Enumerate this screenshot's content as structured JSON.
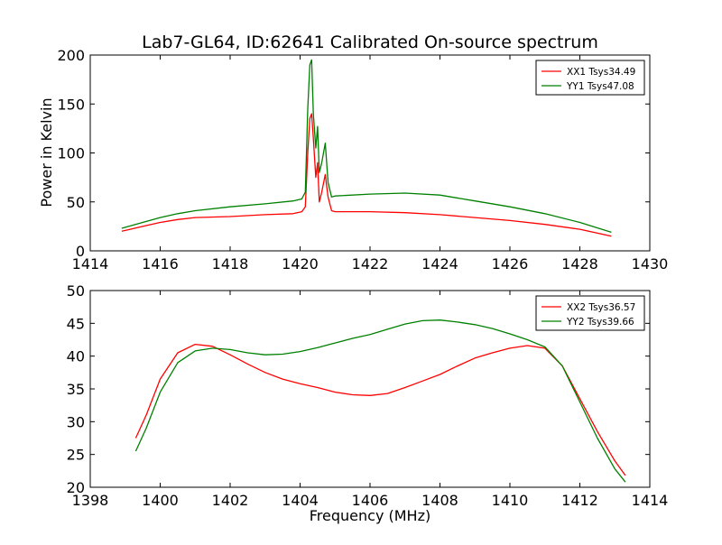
{
  "chart_data": [
    {
      "type": "line",
      "title": "Lab7-GL64, ID:62641 Calibrated On-source spectrum",
      "xlabel": "",
      "ylabel": "Power in Kelvin",
      "xlim": [
        1414,
        1430
      ],
      "ylim": [
        0,
        200
      ],
      "xticks": [
        "1414",
        "1416",
        "1418",
        "1420",
        "1422",
        "1424",
        "1426",
        "1428",
        "1430"
      ],
      "yticks": [
        "0",
        "50",
        "100",
        "150",
        "200"
      ],
      "legend": "top-right",
      "grid": false,
      "series": [
        {
          "name": "XX1 Tsys34.49",
          "color": "#ff0000",
          "x": [
            1414.9,
            1415.5,
            1416.0,
            1416.5,
            1417.0,
            1418.0,
            1419.0,
            1419.8,
            1420.05,
            1420.15,
            1420.22,
            1420.28,
            1420.33,
            1420.38,
            1420.45,
            1420.5,
            1420.55,
            1420.62,
            1420.72,
            1420.8,
            1420.9,
            1421.0,
            1422.0,
            1423.0,
            1424.0,
            1425.0,
            1426.0,
            1427.0,
            1428.0,
            1428.9
          ],
          "values": [
            20,
            25,
            29,
            32,
            34,
            35,
            37,
            38,
            40,
            45,
            100,
            135,
            140,
            115,
            75,
            90,
            50,
            60,
            78,
            55,
            41,
            40,
            40,
            39,
            37,
            34,
            31,
            27,
            22,
            15
          ]
        },
        {
          "name": "YY1 Tsys47.08",
          "color": "#008000",
          "x": [
            1414.9,
            1415.5,
            1416.0,
            1416.5,
            1417.0,
            1418.0,
            1419.0,
            1419.8,
            1420.05,
            1420.15,
            1420.22,
            1420.28,
            1420.33,
            1420.38,
            1420.45,
            1420.5,
            1420.55,
            1420.62,
            1420.72,
            1420.8,
            1420.9,
            1421.0,
            1422.0,
            1423.0,
            1424.0,
            1425.0,
            1426.0,
            1427.0,
            1428.0,
            1428.9
          ],
          "values": [
            23,
            29,
            34,
            38,
            41,
            45,
            48,
            51,
            53,
            60,
            145,
            190,
            195,
            140,
            105,
            127,
            80,
            90,
            110,
            70,
            55,
            56,
            58,
            59,
            57,
            51,
            45,
            38,
            29,
            19
          ]
        }
      ]
    },
    {
      "type": "line",
      "title": "",
      "xlabel": "Frequency (MHz)",
      "ylabel": "",
      "xlim": [
        1398,
        1414
      ],
      "ylim": [
        20,
        50
      ],
      "xticks": [
        "1398",
        "1400",
        "1402",
        "1404",
        "1406",
        "1408",
        "1410",
        "1412",
        "1414"
      ],
      "yticks": [
        "20",
        "25",
        "30",
        "35",
        "40",
        "45",
        "50"
      ],
      "legend": "top-right",
      "grid": false,
      "series": [
        {
          "name": "XX2 Tsys36.57",
          "color": "#ff0000",
          "x": [
            1399.3,
            1399.6,
            1400.0,
            1400.5,
            1401.0,
            1401.5,
            1402.0,
            1402.5,
            1403.0,
            1403.5,
            1404.0,
            1404.5,
            1405.0,
            1405.5,
            1406.0,
            1406.5,
            1407.0,
            1407.5,
            1408.0,
            1408.5,
            1409.0,
            1409.5,
            1410.0,
            1410.5,
            1411.0,
            1411.5,
            1412.0,
            1412.5,
            1413.0,
            1413.3
          ],
          "values": [
            27.5,
            31,
            36.5,
            40.5,
            41.8,
            41.5,
            40.2,
            38.8,
            37.5,
            36.5,
            35.8,
            35.2,
            34.5,
            34.1,
            34.0,
            34.3,
            35.2,
            36.2,
            37.2,
            38.5,
            39.7,
            40.5,
            41.2,
            41.6,
            41.2,
            38.5,
            33.5,
            28.5,
            24.0,
            21.8
          ]
        },
        {
          "name": "YY2 Tsys39.66",
          "color": "#008000",
          "x": [
            1399.3,
            1399.6,
            1400.0,
            1400.5,
            1401.0,
            1401.5,
            1402.0,
            1402.5,
            1403.0,
            1403.5,
            1404.0,
            1404.5,
            1405.0,
            1405.5,
            1406.0,
            1406.5,
            1407.0,
            1407.5,
            1408.0,
            1408.5,
            1409.0,
            1409.5,
            1410.0,
            1410.5,
            1411.0,
            1411.5,
            1412.0,
            1412.5,
            1413.0,
            1413.3
          ],
          "values": [
            25.5,
            29,
            34.5,
            39.0,
            40.8,
            41.2,
            41.0,
            40.5,
            40.2,
            40.3,
            40.7,
            41.3,
            42.0,
            42.7,
            43.3,
            44.1,
            44.9,
            45.4,
            45.5,
            45.2,
            44.8,
            44.2,
            43.4,
            42.5,
            41.4,
            38.5,
            33.0,
            27.5,
            22.8,
            20.8
          ]
        }
      ]
    }
  ]
}
